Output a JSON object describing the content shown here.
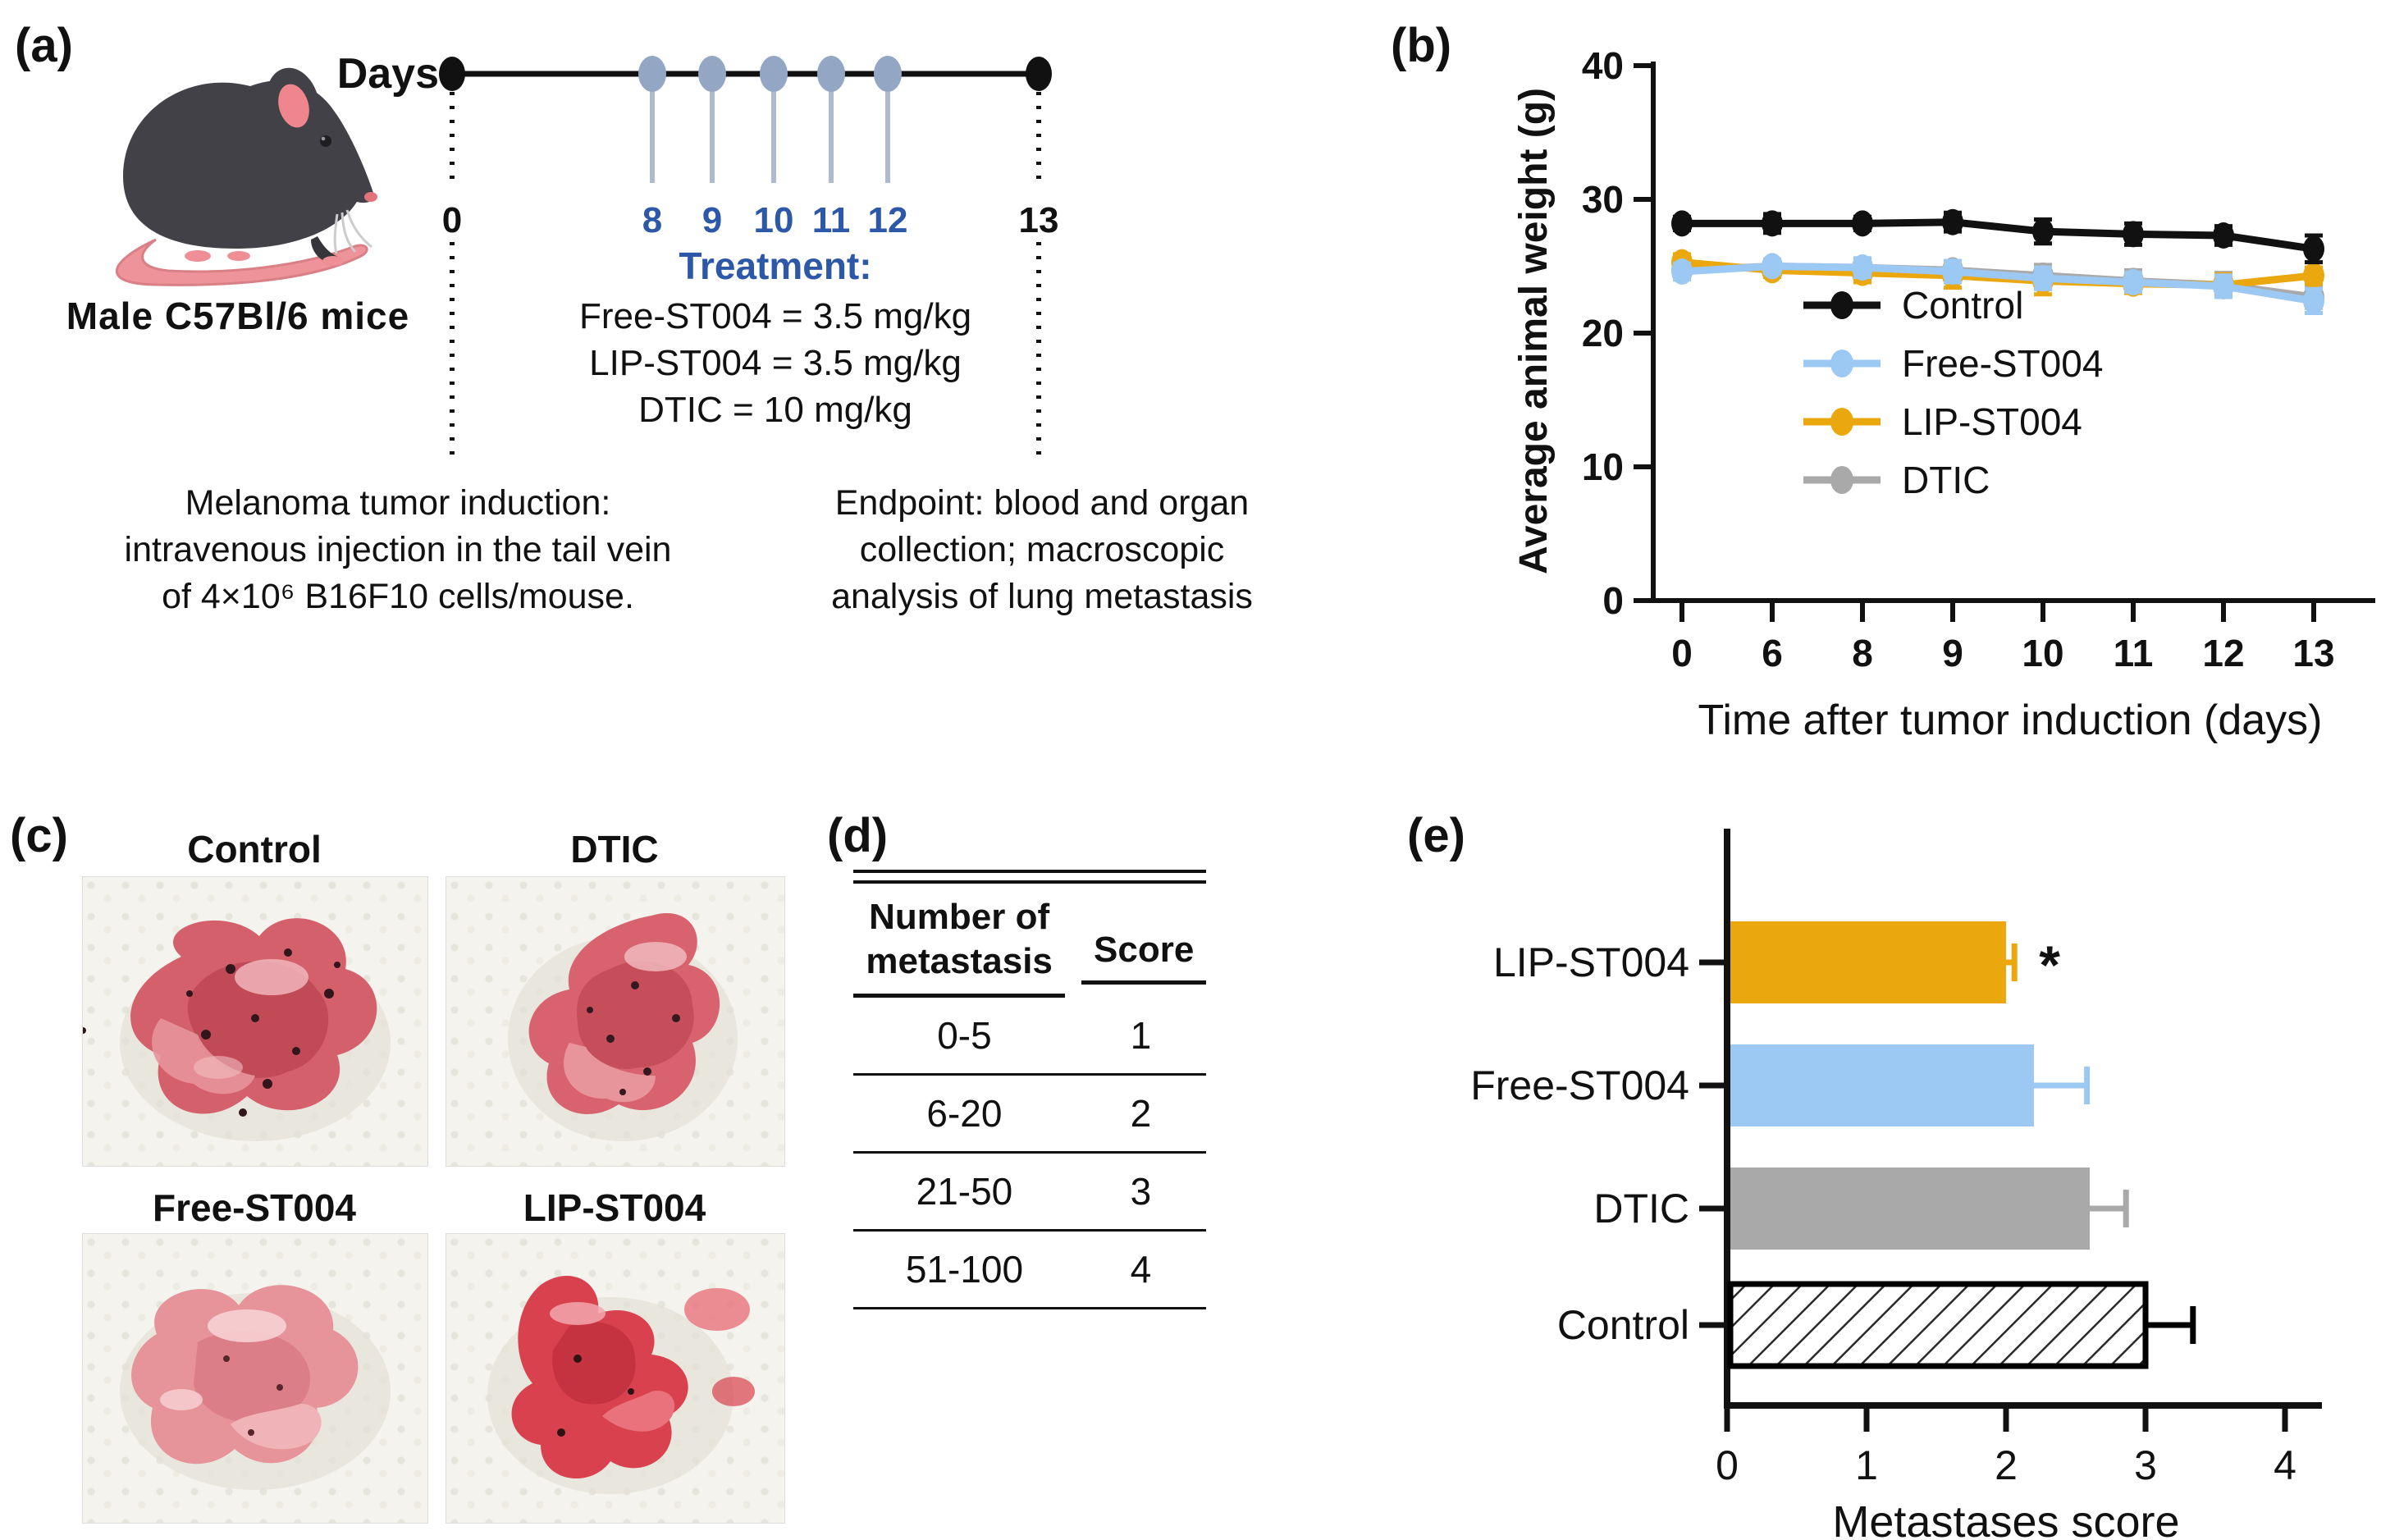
{
  "panels": {
    "a": {
      "label": "(a)",
      "mouse_caption": "Male C57Bl/6 mice",
      "timeline": {
        "axis_label": "Days",
        "start_day": "0",
        "end_day": "13",
        "treatment_days": [
          "8",
          "9",
          "10",
          "11",
          "12"
        ],
        "treatment_title": "Treatment:",
        "treatments": [
          "Free-ST004 = 3.5 mg/kg",
          "LIP-ST004 = 3.5 mg/kg",
          "DTIC = 10 mg/kg"
        ],
        "start_note": [
          "Melanoma tumor induction:",
          "intravenous injection in the tail vein",
          "of 4×10⁶ B16F10 cells/mouse."
        ],
        "end_note": [
          "Endpoint: blood and organ",
          "collection; macroscopic",
          "analysis of lung metastasis"
        ]
      },
      "colors": {
        "accent_blue": "#2d58a8",
        "treatment_dot": "#93a7c4"
      }
    },
    "b": {
      "label": "(b)"
    },
    "c": {
      "label": "(c)",
      "photos": [
        {
          "label": "Control"
        },
        {
          "label": "DTIC"
        },
        {
          "label": "Free-ST004"
        },
        {
          "label": "LIP-ST004"
        }
      ]
    },
    "d": {
      "label": "(d)",
      "table": {
        "headers": [
          "Number of metastasis",
          "Score"
        ],
        "rows": [
          [
            "0-5",
            "1"
          ],
          [
            "6-20",
            "2"
          ],
          [
            "21-50",
            "3"
          ],
          [
            "51-100",
            "4"
          ]
        ]
      }
    },
    "e": {
      "label": "(e)"
    }
  },
  "chart_data": [
    {
      "type": "line",
      "title": "",
      "xlabel": "Time after tumor induction (days)",
      "ylabel": "Average animal weight (g)",
      "x_ticks": [
        "0",
        "6",
        "8",
        "9",
        "10",
        "11",
        "12",
        "13"
      ],
      "ylim": [
        0,
        40
      ],
      "y_ticks": [
        0,
        10,
        20,
        30,
        40
      ],
      "grid": false,
      "legend_position": "inside-lower-left",
      "series": [
        {
          "name": "Control",
          "color": "#111111",
          "values": [
            28.2,
            28.2,
            28.2,
            28.3,
            27.6,
            27.4,
            27.3,
            26.3
          ],
          "errors": [
            0.5,
            0.7,
            0.5,
            0.7,
            0.9,
            0.8,
            0.7,
            1.0
          ]
        },
        {
          "name": "Free-ST004",
          "color": "#9cc8f4",
          "values": [
            24.6,
            25.0,
            24.9,
            24.6,
            24.1,
            23.8,
            23.5,
            22.4
          ],
          "errors": [
            0.6,
            0.5,
            0.7,
            0.8,
            0.8,
            0.7,
            0.8,
            0.9
          ]
        },
        {
          "name": "LIP-ST004",
          "color": "#eaa80e",
          "values": [
            25.3,
            24.7,
            24.5,
            24.3,
            23.9,
            23.7,
            23.6,
            24.3
          ],
          "errors": [
            0.6,
            0.5,
            0.7,
            0.9,
            1.0,
            0.7,
            0.8,
            0.6
          ]
        },
        {
          "name": "DTIC",
          "color": "#a9a9a9",
          "values": [
            24.7,
            25.0,
            24.9,
            24.7,
            24.3,
            23.9,
            23.6,
            22.7
          ],
          "errors": [
            0.5,
            0.5,
            0.6,
            0.7,
            0.8,
            0.8,
            0.9,
            0.8
          ]
        }
      ]
    },
    {
      "type": "bar",
      "orientation": "horizontal",
      "xlabel": "Metastases score",
      "xlim": [
        0,
        4
      ],
      "x_ticks": [
        0,
        1,
        2,
        3,
        4
      ],
      "categories": [
        "LIP-ST004",
        "Free-ST004",
        "DTIC",
        "Control"
      ],
      "values": [
        2.0,
        2.2,
        2.6,
        3.0
      ],
      "errors": [
        0.06,
        0.38,
        0.26,
        0.34
      ],
      "colors": [
        "#eaa80e",
        "#9cc8f4",
        "#a9a9a9",
        "hatch"
      ],
      "annotations": [
        {
          "category": "LIP-ST004",
          "text": "*"
        }
      ]
    }
  ]
}
